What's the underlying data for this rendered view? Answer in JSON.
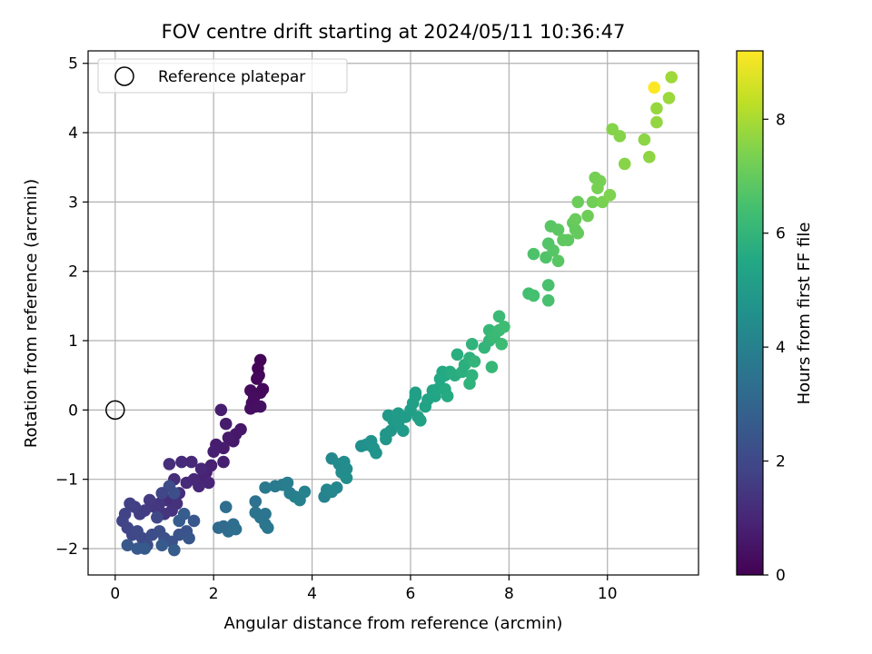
{
  "chart_data": {
    "type": "scatter",
    "title": "FOV centre drift starting at 2024/05/11 10:36:47",
    "xlabel": "Angular distance from reference (arcmin)",
    "ylabel": "Rotation from reference (arcmin)",
    "xlim": [
      -0.55,
      11.85
    ],
    "ylim": [
      -2.38,
      5.18
    ],
    "xticks": [
      0,
      2,
      4,
      6,
      8,
      10
    ],
    "yticks": [
      -2,
      -1,
      0,
      1,
      2,
      3,
      4,
      5
    ],
    "grid": true,
    "legend": {
      "location": "upper-left",
      "entries": [
        "Reference platepar"
      ]
    },
    "reference_point": {
      "x": 0,
      "y": 0
    },
    "colorbar": {
      "label": "Hours from first FF file",
      "colormap": "viridis",
      "range": [
        0,
        9.2
      ],
      "ticks": [
        0,
        2,
        4,
        6,
        8
      ]
    },
    "points": [
      [
        2.95,
        0.72,
        0.1
      ],
      [
        2.9,
        0.6,
        0.1
      ],
      [
        2.92,
        0.5,
        0.12
      ],
      [
        2.88,
        0.45,
        0.15
      ],
      [
        3.0,
        0.3,
        0.2
      ],
      [
        2.95,
        0.25,
        0.2
      ],
      [
        2.75,
        0.28,
        0.25
      ],
      [
        2.82,
        0.18,
        0.3
      ],
      [
        2.78,
        0.1,
        0.3
      ],
      [
        2.75,
        0.02,
        0.35
      ],
      [
        2.85,
        0.05,
        0.35
      ],
      [
        2.95,
        0.05,
        0.4
      ],
      [
        2.55,
        -0.28,
        0.55
      ],
      [
        2.45,
        -0.35,
        0.6
      ],
      [
        2.4,
        -0.45,
        0.6
      ],
      [
        2.3,
        -0.4,
        0.65
      ],
      [
        2.2,
        -0.55,
        0.7
      ],
      [
        2.25,
        -0.2,
        0.7
      ],
      [
        2.15,
        0.0,
        0.75
      ],
      [
        2.05,
        -0.5,
        0.75
      ],
      [
        2.0,
        -0.6,
        0.8
      ],
      [
        2.2,
        -0.75,
        0.8
      ],
      [
        1.95,
        -0.8,
        0.85
      ],
      [
        1.85,
        -0.9,
        0.9
      ],
      [
        1.8,
        -0.95,
        0.9
      ],
      [
        1.9,
        -1.05,
        0.95
      ],
      [
        1.7,
        -1.1,
        1.0
      ],
      [
        1.75,
        -0.85,
        1.0
      ],
      [
        1.55,
        -0.75,
        1.05
      ],
      [
        1.6,
        -1.0,
        1.05
      ],
      [
        1.35,
        -0.75,
        1.1
      ],
      [
        1.45,
        -1.05,
        1.1
      ],
      [
        1.3,
        -1.2,
        1.15
      ],
      [
        1.1,
        -0.78,
        1.2
      ],
      [
        1.2,
        -1.0,
        1.2
      ],
      [
        1.05,
        -1.3,
        1.25
      ],
      [
        1.25,
        -1.35,
        1.3
      ],
      [
        1.15,
        -1.45,
        1.35
      ],
      [
        1.0,
        -1.5,
        1.4
      ],
      [
        0.9,
        -1.35,
        1.45
      ],
      [
        0.8,
        -1.4,
        1.5
      ],
      [
        0.7,
        -1.3,
        1.55
      ],
      [
        0.6,
        -1.45,
        1.6
      ],
      [
        0.5,
        -1.5,
        1.65
      ],
      [
        0.4,
        -1.4,
        1.7
      ],
      [
        0.3,
        -1.35,
        1.75
      ],
      [
        0.2,
        -1.5,
        1.8
      ],
      [
        0.15,
        -1.6,
        1.85
      ],
      [
        0.25,
        -1.7,
        1.9
      ],
      [
        0.35,
        -1.8,
        1.95
      ],
      [
        0.45,
        -1.75,
        2.0
      ],
      [
        0.55,
        -1.85,
        2.05
      ],
      [
        0.65,
        -1.95,
        2.1
      ],
      [
        0.75,
        -1.8,
        2.15
      ],
      [
        0.9,
        -1.75,
        2.2
      ],
      [
        1.0,
        -1.85,
        2.25
      ],
      [
        1.15,
        -1.9,
        2.3
      ],
      [
        1.3,
        -1.8,
        2.35
      ],
      [
        1.45,
        -1.75,
        2.4
      ],
      [
        1.5,
        -1.85,
        2.45
      ],
      [
        1.6,
        -1.6,
        2.5
      ],
      [
        0.25,
        -1.95,
        2.5
      ],
      [
        0.45,
        -2.0,
        2.55
      ],
      [
        0.6,
        -2.0,
        2.6
      ],
      [
        0.95,
        -1.95,
        2.6
      ],
      [
        1.2,
        -2.02,
        2.65
      ],
      [
        1.3,
        -1.6,
        2.7
      ],
      [
        1.4,
        -1.5,
        2.7
      ],
      [
        1.2,
        -1.2,
        2.2
      ],
      [
        1.1,
        -1.1,
        2.1
      ],
      [
        0.95,
        -1.2,
        1.9
      ],
      [
        0.85,
        -1.55,
        2.0
      ],
      [
        2.2,
        -1.68,
        3.2
      ],
      [
        2.3,
        -1.75,
        3.25
      ],
      [
        2.25,
        -1.4,
        3.3
      ],
      [
        2.4,
        -1.65,
        3.3
      ],
      [
        2.45,
        -1.72,
        3.35
      ],
      [
        2.1,
        -1.7,
        3.15
      ],
      [
        2.85,
        -1.32,
        3.45
      ],
      [
        2.85,
        -1.48,
        3.5
      ],
      [
        2.95,
        -1.55,
        3.55
      ],
      [
        3.05,
        -1.5,
        3.6
      ],
      [
        3.05,
        -1.65,
        3.6
      ],
      [
        3.1,
        -1.7,
        3.65
      ],
      [
        3.05,
        -1.12,
        3.7
      ],
      [
        3.25,
        -1.1,
        3.75
      ],
      [
        3.4,
        -1.08,
        3.8
      ],
      [
        3.5,
        -1.05,
        3.85
      ],
      [
        3.55,
        -1.2,
        3.9
      ],
      [
        3.65,
        -1.25,
        3.95
      ],
      [
        3.75,
        -1.3,
        4.0
      ],
      [
        3.85,
        -1.18,
        4.05
      ],
      [
        4.25,
        -1.25,
        4.1
      ],
      [
        4.3,
        -1.15,
        4.15
      ],
      [
        4.4,
        -1.18,
        4.2
      ],
      [
        4.5,
        -1.12,
        4.25
      ],
      [
        4.4,
        -0.7,
        4.3
      ],
      [
        4.55,
        -0.78,
        4.35
      ],
      [
        4.65,
        -0.75,
        4.4
      ],
      [
        4.7,
        -0.85,
        4.45
      ],
      [
        4.6,
        -0.9,
        4.45
      ],
      [
        4.7,
        -0.98,
        4.5
      ],
      [
        5.0,
        -0.52,
        4.55
      ],
      [
        5.1,
        -0.5,
        4.6
      ],
      [
        5.2,
        -0.45,
        4.65
      ],
      [
        5.25,
        -0.55,
        4.7
      ],
      [
        5.3,
        -0.62,
        4.75
      ],
      [
        5.5,
        -0.35,
        4.8
      ],
      [
        5.5,
        -0.42,
        4.85
      ],
      [
        5.6,
        -0.3,
        4.85
      ],
      [
        5.65,
        -0.15,
        4.9
      ],
      [
        5.55,
        -0.08,
        4.9
      ],
      [
        5.75,
        -0.2,
        4.95
      ],
      [
        5.85,
        -0.3,
        5.0
      ],
      [
        5.75,
        -0.05,
        5.0
      ],
      [
        5.9,
        -0.1,
        5.05
      ],
      [
        6.0,
        0.0,
        5.1
      ],
      [
        6.05,
        0.1,
        5.15
      ],
      [
        6.1,
        0.2,
        5.15
      ],
      [
        6.1,
        0.25,
        5.2
      ],
      [
        6.15,
        -0.1,
        5.2
      ],
      [
        6.2,
        -0.15,
        5.25
      ],
      [
        6.3,
        0.05,
        5.3
      ],
      [
        6.35,
        0.15,
        5.3
      ],
      [
        6.45,
        0.28,
        5.35
      ],
      [
        6.5,
        0.2,
        5.4
      ],
      [
        6.55,
        0.3,
        5.45
      ],
      [
        6.6,
        0.45,
        5.5
      ],
      [
        6.65,
        0.55,
        5.55
      ],
      [
        6.7,
        0.5,
        5.55
      ],
      [
        6.7,
        0.3,
        5.6
      ],
      [
        6.75,
        0.2,
        5.6
      ],
      [
        6.8,
        0.55,
        5.65
      ],
      [
        6.9,
        0.5,
        5.7
      ],
      [
        6.95,
        0.8,
        5.75
      ],
      [
        7.05,
        0.55,
        5.8
      ],
      [
        7.1,
        0.65,
        5.8
      ],
      [
        7.2,
        0.75,
        5.85
      ],
      [
        7.2,
        0.38,
        5.9
      ],
      [
        7.25,
        0.5,
        5.9
      ],
      [
        7.25,
        0.95,
        5.95
      ],
      [
        7.3,
        0.7,
        6.0
      ],
      [
        7.5,
        0.9,
        6.0
      ],
      [
        7.6,
        1.0,
        6.05
      ],
      [
        7.6,
        1.15,
        6.1
      ],
      [
        7.65,
        0.62,
        6.1
      ],
      [
        7.7,
        1.05,
        6.15
      ],
      [
        7.8,
        1.15,
        6.2
      ],
      [
        7.8,
        1.35,
        6.2
      ],
      [
        7.85,
        0.95,
        6.25
      ],
      [
        7.9,
        1.2,
        6.3
      ],
      [
        8.4,
        1.68,
        6.4
      ],
      [
        8.5,
        1.65,
        6.45
      ],
      [
        8.8,
        1.8,
        6.5
      ],
      [
        8.8,
        1.58,
        6.5
      ],
      [
        8.5,
        2.25,
        6.6
      ],
      [
        8.75,
        2.2,
        6.65
      ],
      [
        8.8,
        2.4,
        6.7
      ],
      [
        8.9,
        2.3,
        6.75
      ],
      [
        9.0,
        2.15,
        6.8
      ],
      [
        8.85,
        2.65,
        6.8
      ],
      [
        9.0,
        2.6,
        6.85
      ],
      [
        9.1,
        2.45,
        6.9
      ],
      [
        9.2,
        2.45,
        6.9
      ],
      [
        9.3,
        2.7,
        6.95
      ],
      [
        9.35,
        2.6,
        7.0
      ],
      [
        9.4,
        2.55,
        7.0
      ],
      [
        9.35,
        2.75,
        7.05
      ],
      [
        9.4,
        3.0,
        7.1
      ],
      [
        9.6,
        2.8,
        7.15
      ],
      [
        9.7,
        3.0,
        7.2
      ],
      [
        9.75,
        3.35,
        7.25
      ],
      [
        9.85,
        3.3,
        7.3
      ],
      [
        9.8,
        3.2,
        7.3
      ],
      [
        9.9,
        3.0,
        7.35
      ],
      [
        10.05,
        3.1,
        7.4
      ],
      [
        10.1,
        4.05,
        7.5
      ],
      [
        10.25,
        3.95,
        7.5
      ],
      [
        10.35,
        3.55,
        7.55
      ],
      [
        10.75,
        3.9,
        7.6
      ],
      [
        10.85,
        3.65,
        7.65
      ],
      [
        11.0,
        4.15,
        7.7
      ],
      [
        11.0,
        4.35,
        7.75
      ],
      [
        11.25,
        4.5,
        7.8
      ],
      [
        11.3,
        4.8,
        7.85
      ],
      [
        10.95,
        4.65,
        9.2
      ]
    ]
  }
}
